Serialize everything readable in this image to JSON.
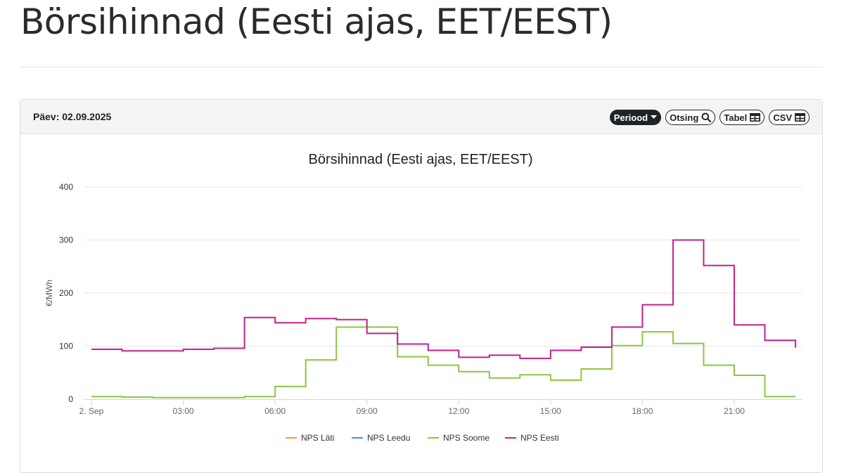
{
  "page": {
    "title": "Börsihinnad (Eesti ajas, EET/EEST)"
  },
  "panel": {
    "day_label": "Päev: 02.09.2025",
    "buttons": {
      "period": "Periood",
      "search": "Otsing",
      "table": "Tabel",
      "csv": "CSV"
    }
  },
  "chart_data": {
    "type": "line",
    "step": true,
    "title": "Börsihinnad (Eesti ajas, EET/EEST)",
    "ylabel": "€/MWh",
    "xlabel": "",
    "ylim": [
      0,
      400
    ],
    "yticks": [
      0,
      100,
      200,
      300,
      400
    ],
    "x_ticks": [
      "2. Sep",
      "03:00",
      "06:00",
      "09:00",
      "12:00",
      "15:00",
      "18:00",
      "21:00"
    ],
    "x_tick_hours": [
      0,
      3,
      6,
      9,
      12,
      15,
      18,
      21
    ],
    "xlim_hours": [
      0,
      23
    ],
    "grid": "horizontal",
    "legend_position": "bottom",
    "hours": [
      "00:00",
      "01:00",
      "02:00",
      "03:00",
      "04:00",
      "05:00",
      "06:00",
      "07:00",
      "08:00",
      "09:00",
      "10:00",
      "11:00",
      "12:00",
      "13:00",
      "14:00",
      "15:00",
      "16:00",
      "17:00",
      "18:00",
      "19:00",
      "20:00",
      "21:00",
      "22:00",
      "23:00"
    ],
    "series": [
      {
        "name": "NPS Läti",
        "color": "#f0a030",
        "values": []
      },
      {
        "name": "NPS Leedu",
        "color": "#3a9ad9",
        "values": []
      },
      {
        "name": "NPS Soome",
        "color": "#8cc63f",
        "values": [
          5,
          4,
          3,
          3,
          3,
          5,
          24,
          74,
          136,
          136,
          80,
          64,
          52,
          40,
          46,
          36,
          57,
          101,
          127,
          105,
          64,
          45,
          5,
          5
        ]
      },
      {
        "name": "NPS Eesti",
        "color": "#c42089",
        "values": [
          94,
          91,
          91,
          94,
          96,
          154,
          144,
          152,
          150,
          124,
          104,
          92,
          79,
          83,
          77,
          92,
          98,
          136,
          178,
          300,
          252,
          140,
          111,
          97
        ]
      }
    ]
  }
}
